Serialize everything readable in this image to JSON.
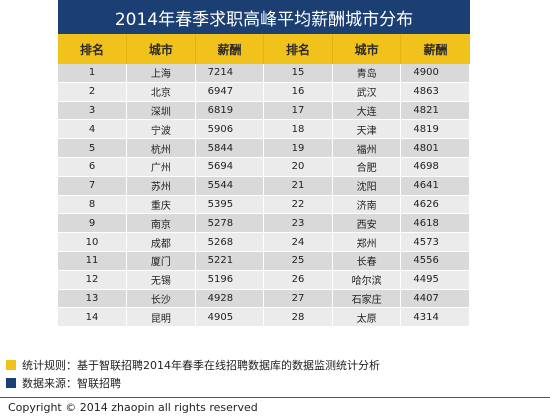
{
  "title": "2014年春季求职高峰平均薪酬城市分布",
  "headers": [
    "排名",
    "城市",
    "薪酬",
    "排名",
    "城市",
    "薪酬"
  ],
  "rows": [
    [
      "1",
      "上海",
      "7214",
      "15",
      "青岛",
      "4900"
    ],
    [
      "2",
      "北京",
      "6947",
      "16",
      "武汉",
      "4863"
    ],
    [
      "3",
      "深圳",
      "6819",
      "17",
      "大连",
      "4821"
    ],
    [
      "4",
      "宁波",
      "5906",
      "18",
      "天津",
      "4819"
    ],
    [
      "5",
      "杭州",
      "5844",
      "19",
      "福州",
      "4801"
    ],
    [
      "6",
      "广州",
      "5694",
      "20",
      "合肥",
      "4698"
    ],
    [
      "7",
      "苏州",
      "5544",
      "21",
      "沈阳",
      "4641"
    ],
    [
      "8",
      "重庆",
      "5395",
      "22",
      "济南",
      "4626"
    ],
    [
      "9",
      "南京",
      "5278",
      "23",
      "西安",
      "4618"
    ],
    [
      "10",
      "成都",
      "5268",
      "24",
      "郑州",
      "4573"
    ],
    [
      "11",
      "厦门",
      "5221",
      "25",
      "长春",
      "4556"
    ],
    [
      "12",
      "无锡",
      "5196",
      "26",
      "哈尔滨",
      "4495"
    ],
    [
      "13",
      "长沙",
      "4928",
      "27",
      "石家庄",
      "4407"
    ],
    [
      "14",
      "昆明",
      "4905",
      "28",
      "太原",
      "4314"
    ]
  ],
  "notes": {
    "stat_rule": "统计规则：基于智联招聘2014年春季在线招聘数据库的数据监测统计分析",
    "data_source": "数据来源：智联招聘"
  },
  "colors": {
    "title_bg": "#1b3f73",
    "header_bg": "#f1c21b",
    "row_odd": "#d9d9d9",
    "row_even": "#ebebeb",
    "note_yellow": "#f1c21b",
    "note_blue": "#1b3f73"
  },
  "copyright": "Copyright  ©  2014 zhaopin all rights reserved"
}
